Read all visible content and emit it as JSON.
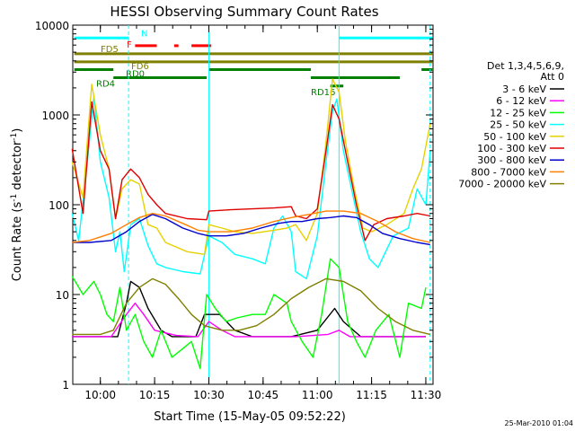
{
  "chart_data": {
    "type": "line",
    "title": "HESSI Observing Summary Count Rates",
    "xlabel": "Start Time (15-May-05 09:52:22)",
    "ylabel_main": "Count Rate (s",
    "ylabel_sup1": "-1",
    "ylabel_mid": " detector",
    "ylabel_sup2": "-1",
    "ylabel_end": ")",
    "yscale": "log",
    "ylim": [
      1,
      10000
    ],
    "xlim": [
      9.8728,
      11.5333
    ],
    "xticks": [
      {
        "v": 10.0,
        "label": "10:00"
      },
      {
        "v": 10.25,
        "label": "10:15"
      },
      {
        "v": 10.5,
        "label": "10:30"
      },
      {
        "v": 10.75,
        "label": "10:45"
      },
      {
        "v": 11.0,
        "label": "11:00"
      },
      {
        "v": 11.25,
        "label": "11:15"
      },
      {
        "v": 11.5,
        "label": "11:30"
      }
    ],
    "yticks": [
      {
        "v": 1,
        "label": "1"
      },
      {
        "v": 10,
        "label": "10"
      },
      {
        "v": 100,
        "label": "100"
      },
      {
        "v": 1000,
        "label": "1000"
      },
      {
        "v": 10000,
        "label": "10000"
      }
    ],
    "legend_header": [
      "Det 1,3,4,5,6,9,",
      "Att 0"
    ],
    "series": [
      {
        "name": "3 - 6 keV",
        "color": "#000000",
        "points": [
          [
            9.87,
            3.4
          ],
          [
            10.0,
            3.4
          ],
          [
            10.08,
            3.4
          ],
          [
            10.12,
            8
          ],
          [
            10.14,
            14
          ],
          [
            10.18,
            12
          ],
          [
            10.22,
            7
          ],
          [
            10.28,
            4
          ],
          [
            10.33,
            3.4
          ],
          [
            10.44,
            3.4
          ],
          [
            10.48,
            6
          ],
          [
            10.55,
            6
          ],
          [
            10.62,
            4
          ],
          [
            10.7,
            3.4
          ],
          [
            10.8,
            3.4
          ],
          [
            10.88,
            3.4
          ],
          [
            11.0,
            4
          ],
          [
            11.08,
            7
          ],
          [
            11.12,
            5
          ],
          [
            11.2,
            3.4
          ],
          [
            11.3,
            3.4
          ],
          [
            11.5,
            3.4
          ]
        ]
      },
      {
        "name": "6 - 12 keV",
        "color": "#ff00ff",
        "points": [
          [
            9.87,
            3.4
          ],
          [
            10.05,
            3.4
          ],
          [
            10.12,
            6
          ],
          [
            10.16,
            8
          ],
          [
            10.2,
            6
          ],
          [
            10.25,
            4
          ],
          [
            10.35,
            3.5
          ],
          [
            10.45,
            3.4
          ],
          [
            10.5,
            5
          ],
          [
            10.56,
            4
          ],
          [
            10.62,
            3.4
          ],
          [
            10.75,
            3.4
          ],
          [
            10.9,
            3.4
          ],
          [
            11.05,
            3.6
          ],
          [
            11.1,
            4
          ],
          [
            11.15,
            3.4
          ],
          [
            11.5,
            3.4
          ]
        ]
      },
      {
        "name": "12 - 25 keV",
        "color": "#00ff00",
        "points": [
          [
            9.87,
            16
          ],
          [
            9.92,
            10
          ],
          [
            9.97,
            14
          ],
          [
            10.0,
            10
          ],
          [
            10.03,
            6
          ],
          [
            10.06,
            5
          ],
          [
            10.09,
            12
          ],
          [
            10.12,
            4
          ],
          [
            10.16,
            6
          ],
          [
            10.2,
            3
          ],
          [
            10.24,
            2
          ],
          [
            10.28,
            4
          ],
          [
            10.33,
            2
          ],
          [
            10.38,
            2.5
          ],
          [
            10.42,
            3
          ],
          [
            10.46,
            1.5
          ],
          [
            10.49,
            10
          ],
          [
            10.53,
            7
          ],
          [
            10.58,
            5
          ],
          [
            10.63,
            5.5
          ],
          [
            10.7,
            6
          ],
          [
            10.76,
            6
          ],
          [
            10.8,
            10
          ],
          [
            10.86,
            8
          ],
          [
            10.88,
            5
          ],
          [
            10.93,
            3
          ],
          [
            10.98,
            2
          ],
          [
            11.02,
            6
          ],
          [
            11.06,
            25
          ],
          [
            11.1,
            20
          ],
          [
            11.14,
            5
          ],
          [
            11.18,
            3
          ],
          [
            11.22,
            2
          ],
          [
            11.27,
            4
          ],
          [
            11.33,
            6
          ],
          [
            11.38,
            2
          ],
          [
            11.42,
            8
          ],
          [
            11.48,
            7
          ],
          [
            11.5,
            12
          ]
        ]
      },
      {
        "name": "25 - 50 keV",
        "color": "#00ffff",
        "points": [
          [
            9.87,
            80
          ],
          [
            9.9,
            40
          ],
          [
            9.94,
            300
          ],
          [
            9.97,
            1600
          ],
          [
            10.0,
            300
          ],
          [
            10.04,
            120
          ],
          [
            10.07,
            30
          ],
          [
            10.09,
            50
          ],
          [
            10.11,
            18
          ],
          [
            10.14,
            60
          ],
          [
            10.18,
            70
          ],
          [
            10.22,
            35
          ],
          [
            10.26,
            22
          ],
          [
            10.3,
            20
          ],
          [
            10.38,
            18
          ],
          [
            10.46,
            17
          ],
          [
            10.5,
            45
          ],
          [
            10.56,
            38
          ],
          [
            10.62,
            28
          ],
          [
            10.7,
            25
          ],
          [
            10.76,
            22
          ],
          [
            10.8,
            55
          ],
          [
            10.84,
            75
          ],
          [
            10.88,
            50
          ],
          [
            10.9,
            18
          ],
          [
            10.95,
            15
          ],
          [
            11.0,
            45
          ],
          [
            11.04,
            300
          ],
          [
            11.07,
            1100
          ],
          [
            11.09,
            1500
          ],
          [
            11.12,
            400
          ],
          [
            11.16,
            140
          ],
          [
            11.2,
            50
          ],
          [
            11.24,
            25
          ],
          [
            11.28,
            20
          ],
          [
            11.35,
            45
          ],
          [
            11.42,
            55
          ],
          [
            11.46,
            150
          ],
          [
            11.5,
            100
          ],
          [
            11.52,
            400
          ]
        ]
      },
      {
        "name": "50 - 100 keV",
        "color": "#e6d200",
        "points": [
          [
            9.87,
            300
          ],
          [
            9.92,
            120
          ],
          [
            9.96,
            2200
          ],
          [
            10.0,
            600
          ],
          [
            10.04,
            250
          ],
          [
            10.07,
            70
          ],
          [
            10.1,
            150
          ],
          [
            10.14,
            190
          ],
          [
            10.18,
            170
          ],
          [
            10.22,
            60
          ],
          [
            10.26,
            55
          ],
          [
            10.3,
            38
          ],
          [
            10.4,
            30
          ],
          [
            10.48,
            28
          ],
          [
            10.5,
            60
          ],
          [
            10.56,
            55
          ],
          [
            10.62,
            50
          ],
          [
            10.7,
            48
          ],
          [
            10.8,
            52
          ],
          [
            10.86,
            55
          ],
          [
            10.9,
            60
          ],
          [
            10.95,
            40
          ],
          [
            11.0,
            80
          ],
          [
            11.04,
            500
          ],
          [
            11.07,
            2500
          ],
          [
            11.1,
            1800
          ],
          [
            11.13,
            500
          ],
          [
            11.17,
            150
          ],
          [
            11.21,
            55
          ],
          [
            11.25,
            50
          ],
          [
            11.32,
            60
          ],
          [
            11.4,
            80
          ],
          [
            11.44,
            150
          ],
          [
            11.48,
            250
          ],
          [
            11.52,
            800
          ]
        ]
      },
      {
        "name": "100 - 300 keV",
        "color": "#e00000",
        "points": [
          [
            9.87,
            420
          ],
          [
            9.92,
            80
          ],
          [
            9.96,
            1400
          ],
          [
            10.0,
            400
          ],
          [
            10.04,
            250
          ],
          [
            10.07,
            70
          ],
          [
            10.1,
            190
          ],
          [
            10.14,
            250
          ],
          [
            10.18,
            200
          ],
          [
            10.22,
            130
          ],
          [
            10.26,
            100
          ],
          [
            10.3,
            80
          ],
          [
            10.4,
            70
          ],
          [
            10.49,
            68
          ],
          [
            10.5,
            85
          ],
          [
            10.6,
            88
          ],
          [
            10.7,
            90
          ],
          [
            10.8,
            92
          ],
          [
            10.88,
            95
          ],
          [
            10.9,
            75
          ],
          [
            10.95,
            70
          ],
          [
            11.0,
            90
          ],
          [
            11.04,
            400
          ],
          [
            11.07,
            1300
          ],
          [
            11.1,
            900
          ],
          [
            11.14,
            300
          ],
          [
            11.18,
            100
          ],
          [
            11.22,
            40
          ],
          [
            11.26,
            60
          ],
          [
            11.32,
            70
          ],
          [
            11.4,
            75
          ],
          [
            11.46,
            80
          ],
          [
            11.52,
            75
          ]
        ]
      },
      {
        "name": "300 - 800 keV",
        "color": "#0000cc",
        "points": [
          [
            9.87,
            38
          ],
          [
            9.95,
            38
          ],
          [
            10.05,
            40
          ],
          [
            10.12,
            50
          ],
          [
            10.18,
            65
          ],
          [
            10.24,
            78
          ],
          [
            10.3,
            70
          ],
          [
            10.38,
            55
          ],
          [
            10.45,
            48
          ],
          [
            10.5,
            45
          ],
          [
            10.58,
            45
          ],
          [
            10.66,
            48
          ],
          [
            10.74,
            55
          ],
          [
            10.82,
            62
          ],
          [
            10.88,
            65
          ],
          [
            10.93,
            65
          ],
          [
            11.0,
            70
          ],
          [
            11.06,
            72
          ],
          [
            11.12,
            75
          ],
          [
            11.18,
            72
          ],
          [
            11.24,
            60
          ],
          [
            11.3,
            48
          ],
          [
            11.38,
            42
          ],
          [
            11.46,
            38
          ],
          [
            11.52,
            36
          ]
        ]
      },
      {
        "name": "800 - 7000 keV",
        "color": "#ff7f00",
        "points": [
          [
            9.87,
            38
          ],
          [
            9.95,
            40
          ],
          [
            10.05,
            48
          ],
          [
            10.12,
            60
          ],
          [
            10.18,
            72
          ],
          [
            10.24,
            80
          ],
          [
            10.3,
            75
          ],
          [
            10.38,
            62
          ],
          [
            10.45,
            52
          ],
          [
            10.5,
            50
          ],
          [
            10.6,
            50
          ],
          [
            10.7,
            55
          ],
          [
            10.8,
            65
          ],
          [
            10.88,
            72
          ],
          [
            10.96,
            78
          ],
          [
            11.04,
            85
          ],
          [
            11.12,
            85
          ],
          [
            11.2,
            80
          ],
          [
            11.28,
            65
          ],
          [
            11.36,
            50
          ],
          [
            11.44,
            42
          ],
          [
            11.52,
            38
          ]
        ]
      },
      {
        "name": "7000 - 20000 keV",
        "color": "#7f7f00",
        "points": [
          [
            9.87,
            3.6
          ],
          [
            9.95,
            3.6
          ],
          [
            10.0,
            3.6
          ],
          [
            10.06,
            4
          ],
          [
            10.12,
            8
          ],
          [
            10.18,
            12
          ],
          [
            10.24,
            15
          ],
          [
            10.3,
            13
          ],
          [
            10.36,
            9
          ],
          [
            10.42,
            6
          ],
          [
            10.48,
            4.5
          ],
          [
            10.56,
            4
          ],
          [
            10.64,
            4
          ],
          [
            10.72,
            4.5
          ],
          [
            10.8,
            6
          ],
          [
            10.88,
            9
          ],
          [
            10.96,
            12
          ],
          [
            11.04,
            15
          ],
          [
            11.12,
            14
          ],
          [
            11.2,
            11
          ],
          [
            11.28,
            7
          ],
          [
            11.36,
            5
          ],
          [
            11.44,
            4
          ],
          [
            11.52,
            3.6
          ]
        ]
      }
    ],
    "flag_rows": [
      {
        "label": "N",
        "color": "#00ffff",
        "value": 7200,
        "segments": [
          [
            9.88,
            10.13
          ],
          [
            11.1,
            11.53
          ]
        ]
      },
      {
        "label": "F",
        "color": "#ff0000",
        "value": 5900,
        "segments": [
          [
            10.16,
            10.26
          ],
          [
            10.34,
            10.36
          ],
          [
            10.42,
            10.51
          ]
        ]
      },
      {
        "label": "FD5",
        "color": "#7f7f00",
        "value": 4800,
        "segments": [
          [
            9.88,
            11.53
          ]
        ]
      },
      {
        "label": "FD6",
        "color": "#7f7f00",
        "value": 3900,
        "segments": [
          [
            9.88,
            11.53
          ]
        ]
      },
      {
        "label": "RD0",
        "color": "#007f00",
        "value": 3200,
        "segments": [
          [
            9.88,
            10.06
          ],
          [
            10.5,
            10.97
          ],
          [
            11.48,
            11.53
          ]
        ]
      },
      {
        "label": "RD4",
        "color": "#007f00",
        "value": 2600,
        "segments": [
          [
            10.06,
            10.49
          ],
          [
            10.97,
            11.38
          ]
        ]
      },
      {
        "label": "RD16",
        "color": "#007f00",
        "value": 2100,
        "segments": [
          [
            11.06,
            11.12
          ]
        ]
      }
    ],
    "vlines": [
      {
        "v": 10.13,
        "color": "#00ffff",
        "dash": true
      },
      {
        "v": 11.1,
        "color": "#00ffff",
        "dash": false
      },
      {
        "v": 11.52,
        "color": "#00ffff",
        "dash": true
      },
      {
        "v": 10.5,
        "color": "#00ffff",
        "dash": false
      }
    ],
    "timestamp": "25-Mar-2010 01:04"
  }
}
